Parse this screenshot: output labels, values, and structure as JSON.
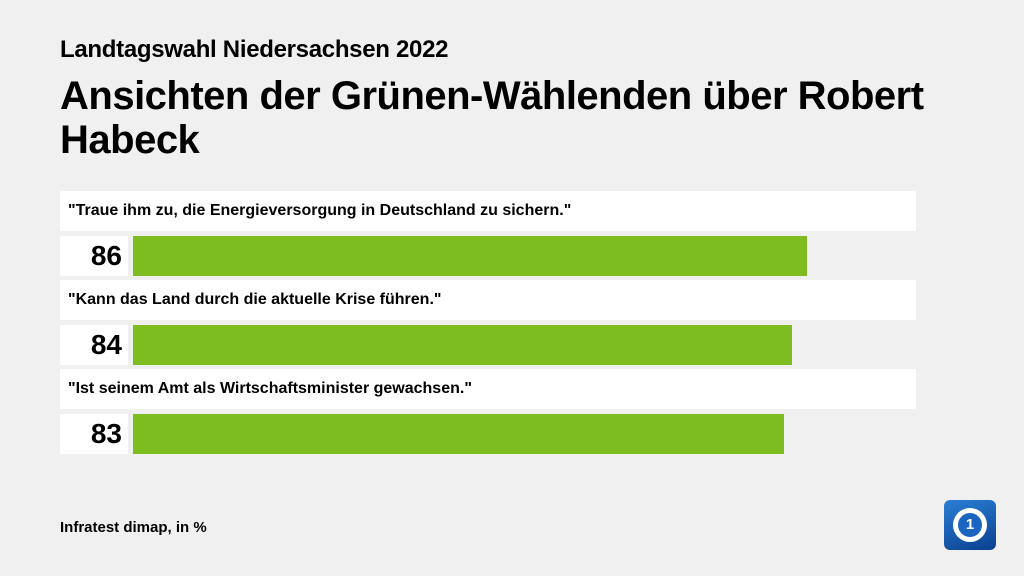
{
  "header": {
    "supertitle": "Landtagswahl Niedersachsen 2022",
    "title": "Ansichten der Grünen-Wählenden über Robert Habeck"
  },
  "footer": {
    "source": "Infratest dimap, in %"
  },
  "logo": {
    "glyph": "1",
    "icon": "tagesschau-logo-icon"
  },
  "colors": {
    "bar": "#7dbd1f",
    "background": "#f0f0f0",
    "label_bg": "#ffffff"
  },
  "chart_data": {
    "type": "bar",
    "orientation": "horizontal",
    "title": "Ansichten der Grünen-Wählenden über Robert Habeck",
    "categories": [
      "\"Traue ihm zu, die Energieversorgung in Deutschland zu sichern.\"",
      "\"Kann das Land durch die aktuelle Krise führen.\"",
      "\"Ist seinem Amt als Wirtschaftsminister gewachsen.\""
    ],
    "values": [
      86,
      84,
      83
    ],
    "xlim": [
      0,
      100
    ],
    "unit": "%",
    "grid": false,
    "legend": "none"
  }
}
